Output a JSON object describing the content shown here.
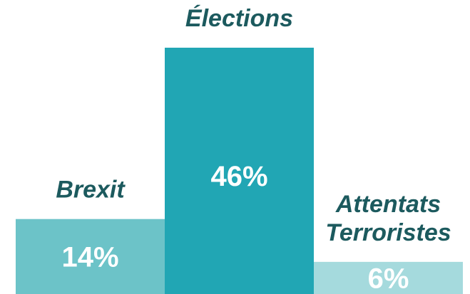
{
  "chart_data": {
    "type": "bar",
    "categories": [
      "Brexit",
      "Élections",
      "Attentats Terroristes"
    ],
    "category_lines": [
      [
        "Brexit"
      ],
      [
        "Élections"
      ],
      [
        "Attentats",
        "Terroristes"
      ]
    ],
    "values": [
      14,
      46,
      6
    ],
    "value_labels": [
      "14%",
      "46%",
      "6%"
    ],
    "unit": "%",
    "ylim": [
      0,
      46
    ],
    "grid": false,
    "legend": "none",
    "colors": {
      "bars": [
        "#6cc3c8",
        "#21a6b4",
        "#a5dadd"
      ],
      "value_text": "#ffffff",
      "category_text": "#1c5a5e"
    }
  }
}
